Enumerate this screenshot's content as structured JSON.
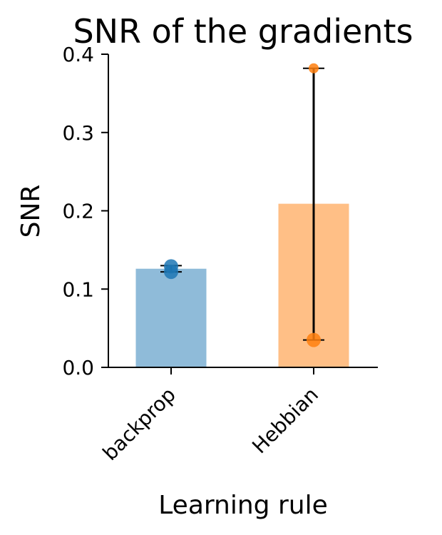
{
  "chart_data": {
    "type": "bar",
    "title": "SNR of the gradients",
    "xlabel": "Learning rule",
    "ylabel": "SNR",
    "categories": [
      "backprop",
      "Hebbian"
    ],
    "values": [
      0.126,
      0.209
    ],
    "error_low": [
      0.122,
      0.035
    ],
    "error_high": [
      0.13,
      0.382
    ],
    "points": [
      [
        0.122,
        0.129
      ],
      [
        0.035,
        0.382
      ]
    ],
    "colors": [
      "#1f77b4",
      "#ff7f0e"
    ],
    "ylim": [
      0,
      0.4
    ],
    "yticks": [
      "0.0",
      "0.1",
      "0.2",
      "0.3",
      "0.4"
    ],
    "grid": false,
    "legend": "none"
  }
}
